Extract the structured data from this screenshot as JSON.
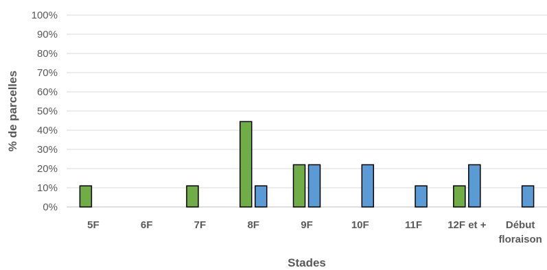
{
  "chart_data": {
    "type": "bar",
    "title": "",
    "xlabel": "Stades",
    "ylabel": "% de parcelles",
    "ylim": [
      0,
      100
    ],
    "yticks": [
      "0%",
      "10%",
      "20%",
      "30%",
      "40%",
      "50%",
      "60%",
      "70%",
      "80%",
      "90%",
      "100%"
    ],
    "categories": [
      [
        "5F"
      ],
      [
        "6F"
      ],
      [
        "7F"
      ],
      [
        "8F"
      ],
      [
        "9F"
      ],
      [
        "10F"
      ],
      [
        "11F"
      ],
      [
        "12F et +"
      ],
      [
        "Début",
        "floraison"
      ]
    ],
    "grid": true,
    "legend": "none",
    "series": [
      {
        "color": "#70ad47",
        "values": [
          11,
          0,
          11,
          44.5,
          22,
          0,
          0,
          11,
          0
        ]
      },
      {
        "color": "#5b9bd5",
        "values": [
          0,
          0,
          0,
          11,
          22,
          22,
          11,
          22,
          11
        ]
      }
    ]
  }
}
